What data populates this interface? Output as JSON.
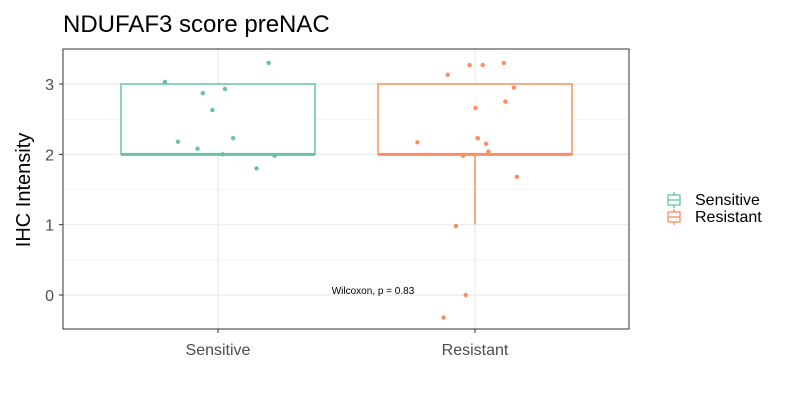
{
  "chart_data": {
    "type": "box",
    "title": "NDUFAF3 score preNAC",
    "xlabel": "",
    "ylabel": "IHC Intensity",
    "categories": [
      "Sensitive",
      "Resistant"
    ],
    "ylim": [
      -0.45,
      3.5
    ],
    "yticks": [
      0,
      1,
      2,
      3
    ],
    "grid": true,
    "legend": {
      "position": "right",
      "entries": [
        "Sensitive",
        "Resistant"
      ]
    },
    "series": [
      {
        "category": "Sensitive",
        "color": "#66c2a5",
        "box": {
          "min": 2,
          "q1": 2,
          "median": 2,
          "q3": 3,
          "max": 3
        },
        "points": [
          3.3,
          3.03,
          2.93,
          2.87,
          2.63,
          2.23,
          2.18,
          2.08,
          2.0,
          1.98,
          1.8
        ]
      },
      {
        "category": "Resistant",
        "color": "#fc8d62",
        "box": {
          "min": 1,
          "q1": 2,
          "median": 2,
          "q3": 3,
          "max": 3
        },
        "points": [
          3.3,
          3.27,
          3.27,
          3.13,
          2.95,
          2.75,
          2.66,
          2.23,
          2.23,
          2.17,
          2.15,
          2.04,
          1.98,
          1.68,
          0.98,
          0.0,
          -0.32
        ]
      }
    ],
    "annotation": "Wilcoxon, p = 0.83"
  }
}
